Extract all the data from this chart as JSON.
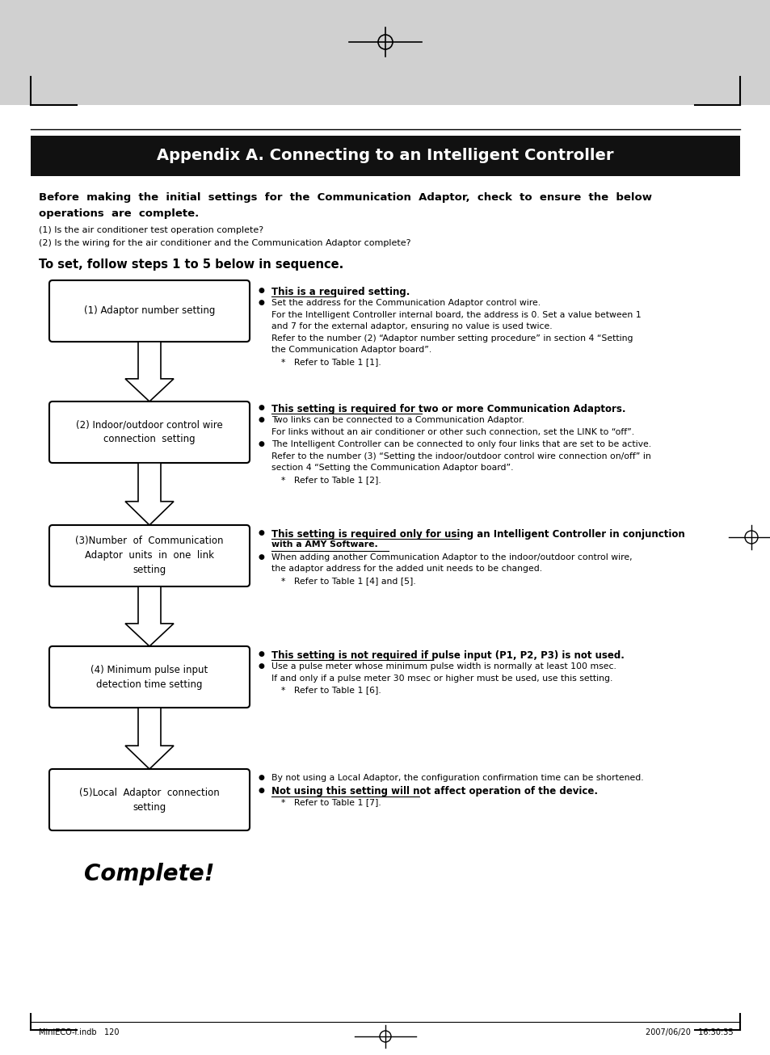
{
  "page_bg": "#ffffff",
  "header_bg": "#d0d0d0",
  "title_bar_bg": "#111111",
  "title_bar_text": "Appendix A. Connecting to an Intelligent Controller",
  "title_bar_text_color": "#ffffff",
  "footer_left": "MiniECO-i.indb   120",
  "footer_right": "2007/06/20   16:30:35",
  "complete_text": "Complete!"
}
